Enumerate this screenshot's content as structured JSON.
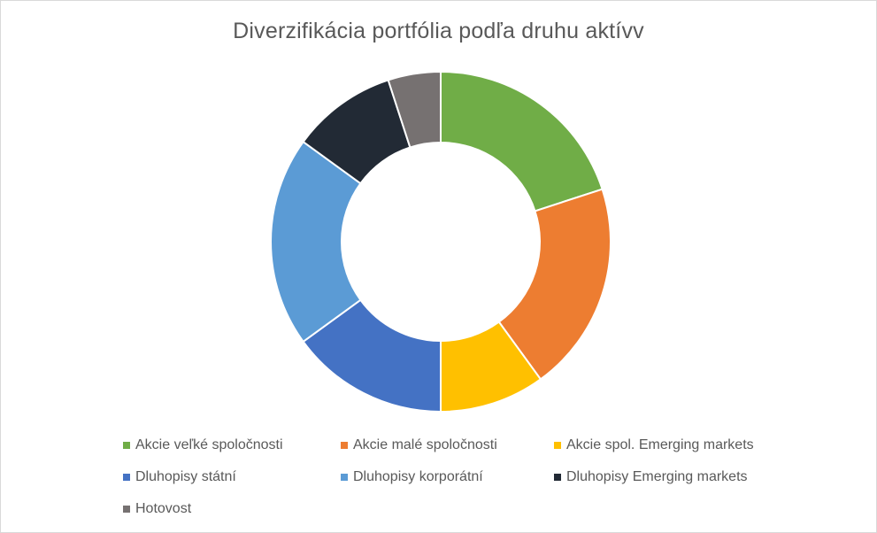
{
  "chart_data": {
    "type": "pie",
    "title": "Diverzifikácia portfólia podľa druhu aktívv",
    "categories": [
      "Akcie veľké spoločnosti",
      "Akcie malé spoločnosti",
      "Akcie spol. Emerging markets",
      "Dluhopisy státní",
      "Dluhopisy korporátní",
      "Dluhopisy Emerging markets",
      "Hotovost"
    ],
    "values": [
      20,
      20,
      10,
      15,
      20,
      10,
      5
    ],
    "colors": [
      "#70ad47",
      "#ed7d31",
      "#ffc000",
      "#4472c4",
      "#5b9bd5",
      "#222a35",
      "#767171"
    ],
    "donut": true,
    "legend_position": "bottom"
  }
}
